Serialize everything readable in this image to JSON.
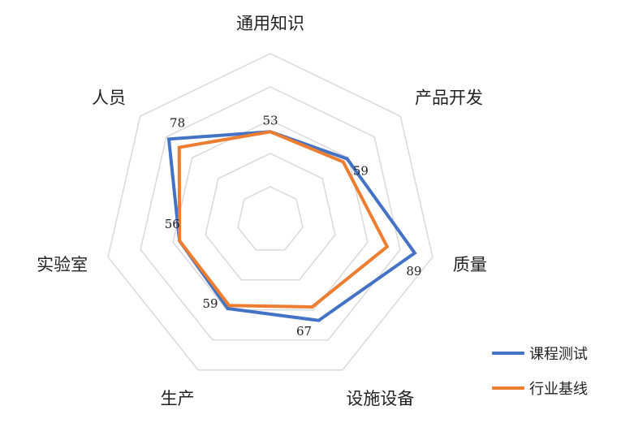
{
  "chart_data": {
    "type": "radar",
    "categories": [
      "通用知识",
      "产品开发",
      "质量",
      "设施设备",
      "生产",
      "实验室",
      "人员"
    ],
    "series": [
      {
        "name": "课程测试",
        "values": [
          53,
          59,
          89,
          67,
          59,
          56,
          78
        ],
        "color": "#4472C4"
      },
      {
        "name": "行业基线",
        "values": [
          53,
          56,
          72,
          58,
          57,
          56,
          70
        ],
        "color": "#ED7D31"
      }
    ],
    "value_labels": [
      "53",
      "59",
      "89",
      "67",
      "59",
      "56",
      "78"
    ],
    "rlim": [
      0,
      100
    ],
    "grid": true,
    "legend": "bottom-right"
  }
}
